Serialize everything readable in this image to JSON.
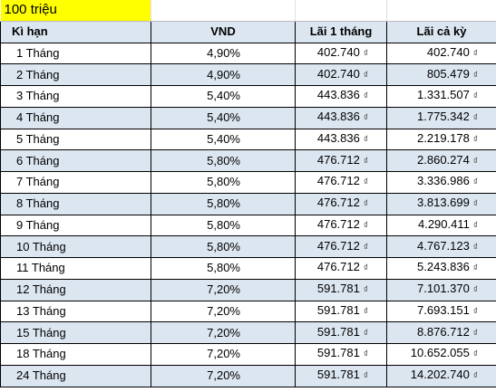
{
  "title": "100 triệu",
  "headers": {
    "term": "Kì hạn",
    "rate": "VND",
    "monthly_interest": "Lãi 1 tháng",
    "total_interest": "Lãi cả kỳ"
  },
  "currency_symbol": "₫",
  "rows": [
    {
      "term": "1 Tháng",
      "rate": "4,90%",
      "monthly": "402.740",
      "total": "402.740"
    },
    {
      "term": "2 Tháng",
      "rate": "4,90%",
      "monthly": "402.740",
      "total": "805.479"
    },
    {
      "term": "3 Tháng",
      "rate": "5,40%",
      "monthly": "443.836",
      "total": "1.331.507"
    },
    {
      "term": "4 Tháng",
      "rate": "5,40%",
      "monthly": "443.836",
      "total": "1.775.342"
    },
    {
      "term": "5 Tháng",
      "rate": "5,40%",
      "monthly": "443.836",
      "total": "2.219.178"
    },
    {
      "term": "6 Tháng",
      "rate": "5,80%",
      "monthly": "476.712",
      "total": "2.860.274"
    },
    {
      "term": "7 Tháng",
      "rate": "5,80%",
      "monthly": "476.712",
      "total": "3.336.986"
    },
    {
      "term": "8 Tháng",
      "rate": "5,80%",
      "monthly": "476.712",
      "total": "3.813.699"
    },
    {
      "term": "9 Tháng",
      "rate": "5,80%",
      "monthly": "476.712",
      "total": "4.290.411"
    },
    {
      "term": "10 Tháng",
      "rate": "5,80%",
      "monthly": "476.712",
      "total": "4.767.123"
    },
    {
      "term": "11 Tháng",
      "rate": "5,80%",
      "monthly": "476.712",
      "total": "5.243.836"
    },
    {
      "term": "12 Tháng",
      "rate": "7,20%",
      "monthly": "591.781",
      "total": "7.101.370"
    },
    {
      "term": "13 Tháng",
      "rate": "7,20%",
      "monthly": "591.781",
      "total": "7.693.151"
    },
    {
      "term": "15 Tháng",
      "rate": "7,20%",
      "monthly": "591.781",
      "total": "8.876.712"
    },
    {
      "term": "18 Tháng",
      "rate": "7,20%",
      "monthly": "591.781",
      "total": "10.652.055"
    },
    {
      "term": "24 Tháng",
      "rate": "7,20%",
      "monthly": "591.781",
      "total": "14.202.740"
    }
  ]
}
